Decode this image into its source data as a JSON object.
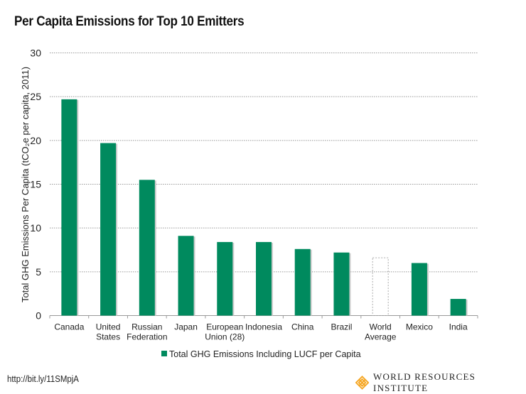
{
  "chart_data": {
    "type": "bar",
    "title": "Per Capita Emissions for Top 10 Emitters",
    "ylabel": "Total GHG Emissions Per Capita (tCO₂e per capita, 2011)",
    "xlabel": "",
    "ylim": [
      0,
      30
    ],
    "yticks": [
      0,
      5,
      10,
      15,
      20,
      25,
      30
    ],
    "grid": true,
    "legend_position": "bottom",
    "categories": [
      [
        "Canada"
      ],
      [
        "United",
        "States"
      ],
      [
        "Russian",
        "Federation"
      ],
      [
        "Japan"
      ],
      [
        "European",
        "Union (28)"
      ],
      [
        "Indonesia"
      ],
      [
        "China"
      ],
      [
        "Brazil"
      ],
      [
        "World",
        "Average"
      ],
      [
        "Mexico"
      ],
      [
        "India"
      ]
    ],
    "series": [
      {
        "name": "Total GHG Emissions Including LUCF per Capita",
        "values": [
          24.7,
          19.7,
          15.5,
          9.1,
          8.4,
          8.4,
          7.6,
          7.2,
          6.6,
          6.0,
          1.9
        ],
        "color": "#008a5e",
        "reference_category": "World Average"
      }
    ]
  },
  "source": "http://bit.ly/11SMpjA",
  "logo": {
    "text": "WORLD RESOURCES INSTITUTE",
    "color": "#f5a623"
  }
}
